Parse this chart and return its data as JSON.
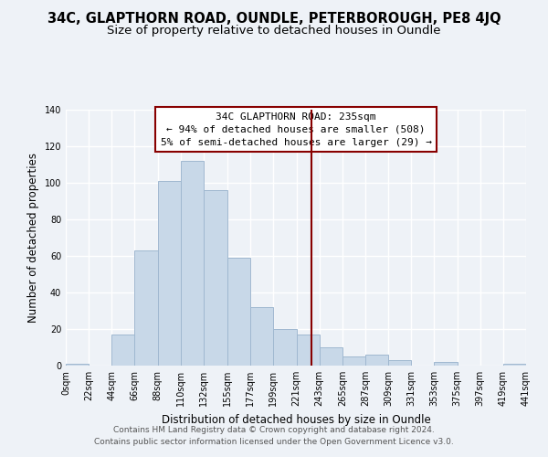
{
  "title": "34C, GLAPTHORN ROAD, OUNDLE, PETERBOROUGH, PE8 4JQ",
  "subtitle": "Size of property relative to detached houses in Oundle",
  "xlabel": "Distribution of detached houses by size in Oundle",
  "ylabel": "Number of detached properties",
  "bar_edges": [
    0,
    22,
    44,
    66,
    88,
    110,
    132,
    155,
    177,
    199,
    221,
    243,
    265,
    287,
    309,
    331,
    353,
    375,
    397,
    419,
    441
  ],
  "bar_heights": [
    1,
    0,
    17,
    63,
    101,
    112,
    96,
    59,
    32,
    20,
    17,
    10,
    5,
    6,
    3,
    0,
    2,
    0,
    0,
    1
  ],
  "bar_color": "#c8d8e8",
  "bar_edgecolor": "#a0b8d0",
  "tick_labels": [
    "0sqm",
    "22sqm",
    "44sqm",
    "66sqm",
    "88sqm",
    "110sqm",
    "132sqm",
    "155sqm",
    "177sqm",
    "199sqm",
    "221sqm",
    "243sqm",
    "265sqm",
    "287sqm",
    "309sqm",
    "331sqm",
    "353sqm",
    "375sqm",
    "397sqm",
    "419sqm",
    "441sqm"
  ],
  "vline_x": 235,
  "vline_color": "#880000",
  "ylim": [
    0,
    140
  ],
  "yticks": [
    0,
    20,
    40,
    60,
    80,
    100,
    120,
    140
  ],
  "annotation_line1": "34C GLAPTHORN ROAD: 235sqm",
  "annotation_line2": "← 94% of detached houses are smaller (508)",
  "annotation_line3": "5% of semi-detached houses are larger (29) →",
  "footer_line1": "Contains HM Land Registry data © Crown copyright and database right 2024.",
  "footer_line2": "Contains public sector information licensed under the Open Government Licence v3.0.",
  "bg_color": "#eef2f7",
  "grid_color": "#ffffff",
  "title_fontsize": 10.5,
  "subtitle_fontsize": 9.5,
  "axis_label_fontsize": 8.5,
  "tick_fontsize": 7,
  "footer_fontsize": 6.5,
  "annot_fontsize": 8
}
